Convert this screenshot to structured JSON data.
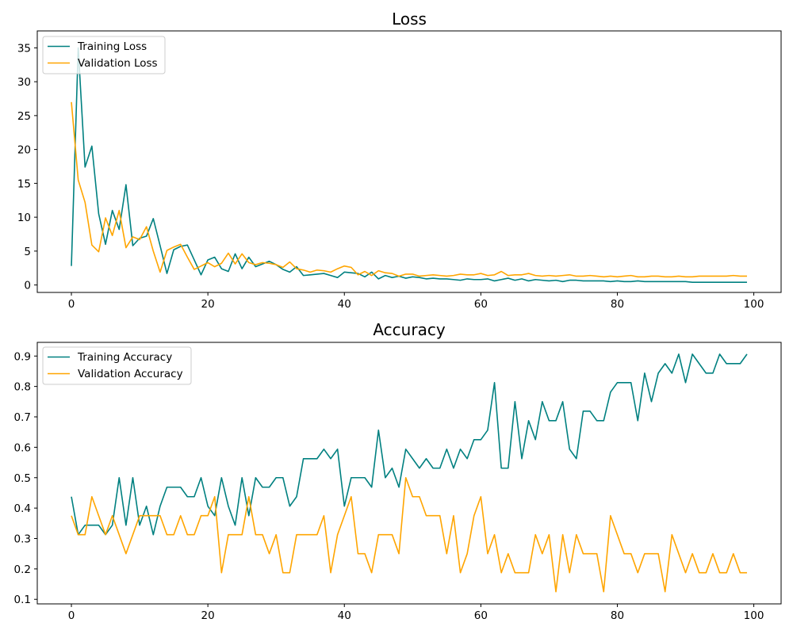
{
  "colors": {
    "training": "#008080",
    "validation": "#ffa500"
  },
  "chart_data": [
    {
      "type": "line",
      "title": "Loss",
      "xlabel": "",
      "ylabel": "",
      "xlim": [
        -5,
        104
      ],
      "ylim": [
        -1.1,
        37.5
      ],
      "xticks": [
        0,
        20,
        40,
        60,
        80,
        100
      ],
      "yticks": [
        0,
        5,
        10,
        15,
        20,
        25,
        30,
        35
      ],
      "legend": "top-left",
      "grid": false,
      "series": [
        {
          "name": "Training Loss",
          "color": "#008080",
          "values": [
            2.8,
            35.0,
            17.4,
            20.5,
            10.5,
            6.0,
            11.0,
            8.2,
            14.8,
            5.8,
            6.9,
            7.2,
            9.8,
            5.8,
            1.7,
            5.2,
            5.7,
            5.9,
            3.7,
            1.5,
            3.7,
            4.1,
            2.4,
            2.0,
            4.6,
            2.4,
            4.1,
            2.7,
            3.1,
            3.5,
            3.0,
            2.3,
            1.9,
            2.7,
            1.4,
            1.5,
            1.6,
            1.7,
            1.4,
            1.1,
            1.9,
            1.8,
            1.7,
            1.2,
            1.9,
            0.9,
            1.4,
            1.1,
            1.3,
            1.0,
            1.2,
            1.1,
            0.9,
            1.0,
            0.9,
            0.9,
            0.8,
            0.7,
            0.9,
            0.8,
            0.8,
            0.9,
            0.6,
            0.8,
            1.0,
            0.7,
            0.9,
            0.6,
            0.8,
            0.7,
            0.6,
            0.7,
            0.5,
            0.7,
            0.7,
            0.6,
            0.6,
            0.6,
            0.6,
            0.5,
            0.6,
            0.5,
            0.5,
            0.6,
            0.5,
            0.5,
            0.5,
            0.5,
            0.5,
            0.5,
            0.5,
            0.4,
            0.4,
            0.4,
            0.4,
            0.4,
            0.4,
            0.4,
            0.4,
            0.4
          ]
        },
        {
          "name": "Validation Loss",
          "color": "#ffa500",
          "values": [
            27.0,
            15.5,
            12.2,
            5.9,
            4.9,
            9.9,
            7.3,
            11.0,
            5.5,
            7.1,
            6.7,
            8.6,
            5.0,
            1.9,
            5.1,
            5.6,
            6.0,
            4.1,
            2.3,
            2.8,
            3.3,
            2.7,
            3.2,
            4.7,
            3.1,
            4.6,
            3.3,
            3.0,
            3.3,
            3.2,
            3.0,
            2.6,
            3.4,
            2.4,
            2.2,
            1.9,
            2.2,
            2.1,
            1.9,
            2.4,
            2.8,
            2.6,
            1.5,
            2.0,
            1.4,
            2.1,
            1.8,
            1.7,
            1.3,
            1.6,
            1.6,
            1.3,
            1.4,
            1.5,
            1.4,
            1.3,
            1.4,
            1.6,
            1.5,
            1.5,
            1.7,
            1.4,
            1.5,
            2.0,
            1.4,
            1.5,
            1.5,
            1.7,
            1.4,
            1.3,
            1.4,
            1.3,
            1.4,
            1.5,
            1.3,
            1.3,
            1.4,
            1.3,
            1.2,
            1.3,
            1.2,
            1.3,
            1.4,
            1.2,
            1.2,
            1.3,
            1.3,
            1.2,
            1.2,
            1.3,
            1.2,
            1.2,
            1.3,
            1.3,
            1.3,
            1.3,
            1.3,
            1.4,
            1.3,
            1.3
          ]
        }
      ]
    },
    {
      "type": "line",
      "title": "Accuracy",
      "xlabel": "",
      "ylabel": "",
      "xlim": [
        -5,
        104
      ],
      "ylim": [
        0.085,
        0.945
      ],
      "xticks": [
        0,
        20,
        40,
        60,
        80,
        100
      ],
      "yticks": [
        0.1,
        0.2,
        0.3,
        0.4,
        0.5,
        0.6,
        0.7,
        0.8,
        0.9
      ],
      "legend": "top-left",
      "grid": false,
      "series": [
        {
          "name": "Training Accuracy",
          "color": "#008080",
          "values": [
            0.4375,
            0.3125,
            0.34375,
            0.34375,
            0.34375,
            0.3125,
            0.34375,
            0.5,
            0.34375,
            0.5,
            0.34375,
            0.40625,
            0.3125,
            0.40625,
            0.46875,
            0.46875,
            0.46875,
            0.4375,
            0.4375,
            0.5,
            0.40625,
            0.375,
            0.5,
            0.40625,
            0.34375,
            0.5,
            0.375,
            0.5,
            0.46875,
            0.46875,
            0.5,
            0.5,
            0.40625,
            0.4375,
            0.5625,
            0.5625,
            0.5625,
            0.59375,
            0.5625,
            0.59375,
            0.40625,
            0.5,
            0.5,
            0.5,
            0.46875,
            0.65625,
            0.5,
            0.53125,
            0.46875,
            0.59375,
            0.5625,
            0.53125,
            0.5625,
            0.53125,
            0.53125,
            0.59375,
            0.53125,
            0.59375,
            0.5625,
            0.625,
            0.625,
            0.65625,
            0.8125,
            0.53125,
            0.53125,
            0.75,
            0.5625,
            0.6875,
            0.625,
            0.75,
            0.6875,
            0.6875,
            0.75,
            0.59375,
            0.5625,
            0.71875,
            0.71875,
            0.6875,
            0.6875,
            0.78125,
            0.8125,
            0.8125,
            0.8125,
            0.6875,
            0.84375,
            0.75,
            0.84375,
            0.875,
            0.84375,
            0.90625,
            0.8125,
            0.90625,
            0.875,
            0.84375,
            0.84375,
            0.90625,
            0.875,
            0.875,
            0.875,
            0.90625
          ]
        },
        {
          "name": "Validation Accuracy",
          "color": "#ffa500",
          "values": [
            0.375,
            0.3125,
            0.3125,
            0.4375,
            0.375,
            0.3125,
            0.375,
            0.3125,
            0.25,
            0.3125,
            0.375,
            0.375,
            0.375,
            0.375,
            0.3125,
            0.3125,
            0.375,
            0.3125,
            0.3125,
            0.375,
            0.375,
            0.4375,
            0.1875,
            0.3125,
            0.3125,
            0.3125,
            0.4375,
            0.3125,
            0.3125,
            0.25,
            0.3125,
            0.1875,
            0.1875,
            0.3125,
            0.3125,
            0.3125,
            0.3125,
            0.375,
            0.1875,
            0.3125,
            0.375,
            0.4375,
            0.25,
            0.25,
            0.1875,
            0.3125,
            0.3125,
            0.3125,
            0.25,
            0.5,
            0.4375,
            0.4375,
            0.375,
            0.375,
            0.375,
            0.25,
            0.375,
            0.1875,
            0.25,
            0.375,
            0.4375,
            0.25,
            0.3125,
            0.1875,
            0.25,
            0.1875,
            0.1875,
            0.1875,
            0.3125,
            0.25,
            0.3125,
            0.125,
            0.3125,
            0.1875,
            0.3125,
            0.25,
            0.25,
            0.25,
            0.125,
            0.375,
            0.3125,
            0.25,
            0.25,
            0.1875,
            0.25,
            0.25,
            0.25,
            0.125,
            0.3125,
            0.25,
            0.1875,
            0.25,
            0.1875,
            0.1875,
            0.25,
            0.1875,
            0.1875,
            0.25,
            0.1875,
            0.1875
          ]
        }
      ]
    }
  ]
}
